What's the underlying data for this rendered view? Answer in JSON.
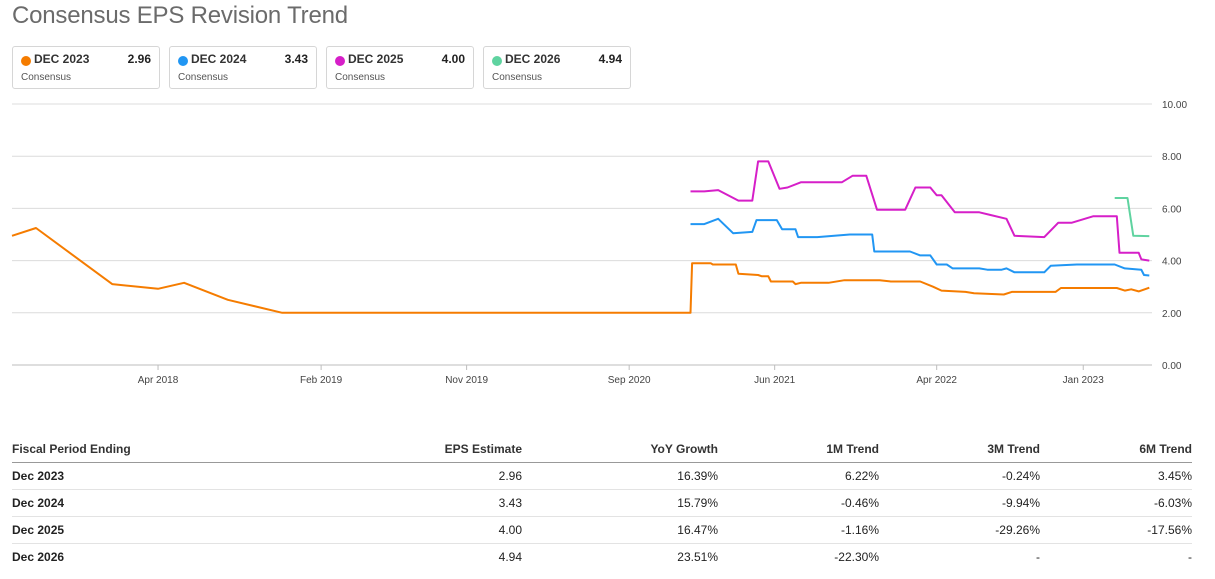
{
  "title": "Consensus EPS Revision Trend",
  "cards": [
    {
      "name": "DEC 2023",
      "value": "2.96",
      "sub": "Consensus",
      "color": "#f57c00"
    },
    {
      "name": "DEC 2024",
      "value": "3.43",
      "sub": "Consensus",
      "color": "#2196f3"
    },
    {
      "name": "DEC 2025",
      "value": "4.00",
      "sub": "Consensus",
      "color": "#d61fc8"
    },
    {
      "name": "DEC 2026",
      "value": "4.94",
      "sub": "Consensus",
      "color": "#5fd3a0"
    }
  ],
  "chart_data": {
    "type": "line",
    "title": "Consensus EPS Revision Trend",
    "xlabel": "",
    "ylabel": "",
    "x_range": [
      "2017-07-01",
      "2023-05-10"
    ],
    "ylim": [
      0,
      10
    ],
    "y_ticks": [
      "0.00",
      "2.00",
      "4.00",
      "6.00",
      "8.00",
      "10.00"
    ],
    "y_tick_values": [
      0,
      2,
      4,
      6,
      8,
      10
    ],
    "x_ticks": [
      {
        "label": "Apr 2018",
        "date": "2018-04-01"
      },
      {
        "label": "Feb 2019",
        "date": "2019-02-01"
      },
      {
        "label": "Nov 2019",
        "date": "2019-11-01"
      },
      {
        "label": "Sep 2020",
        "date": "2020-09-01"
      },
      {
        "label": "Jun 2021",
        "date": "2021-06-01"
      },
      {
        "label": "Apr 2022",
        "date": "2022-04-01"
      },
      {
        "label": "Jan 2023",
        "date": "2023-01-01"
      }
    ],
    "grid": true,
    "legend": "top",
    "series": [
      {
        "name": "DEC 2023",
        "color": "#f57c00",
        "points": [
          [
            "2017-07-01",
            4.95
          ],
          [
            "2017-08-15",
            5.25
          ],
          [
            "2018-01-05",
            3.1
          ],
          [
            "2018-04-01",
            2.92
          ],
          [
            "2018-05-20",
            3.15
          ],
          [
            "2018-08-10",
            2.5
          ],
          [
            "2018-11-20",
            2.0
          ],
          [
            "2020-12-25",
            2.0
          ],
          [
            "2020-12-28",
            3.9
          ],
          [
            "2021-02-01",
            3.9
          ],
          [
            "2021-02-05",
            3.85
          ],
          [
            "2021-03-20",
            3.85
          ],
          [
            "2021-03-25",
            3.5
          ],
          [
            "2021-05-01",
            3.45
          ],
          [
            "2021-05-08",
            3.4
          ],
          [
            "2021-05-20",
            3.4
          ],
          [
            "2021-05-25",
            3.2
          ],
          [
            "2021-07-05",
            3.2
          ],
          [
            "2021-07-10",
            3.1
          ],
          [
            "2021-07-20",
            3.15
          ],
          [
            "2021-09-10",
            3.15
          ],
          [
            "2021-10-10",
            3.25
          ],
          [
            "2021-12-15",
            3.25
          ],
          [
            "2022-01-05",
            3.2
          ],
          [
            "2022-03-01",
            3.2
          ],
          [
            "2022-03-25",
            3.0
          ],
          [
            "2022-04-10",
            2.85
          ],
          [
            "2022-05-25",
            2.8
          ],
          [
            "2022-06-10",
            2.75
          ],
          [
            "2022-08-05",
            2.7
          ],
          [
            "2022-08-20",
            2.8
          ],
          [
            "2022-11-10",
            2.8
          ],
          [
            "2022-11-20",
            2.95
          ],
          [
            "2023-03-05",
            2.95
          ],
          [
            "2023-03-20",
            2.85
          ],
          [
            "2023-04-01",
            2.9
          ],
          [
            "2023-04-15",
            2.82
          ],
          [
            "2023-05-05",
            2.96
          ]
        ]
      },
      {
        "name": "DEC 2024",
        "color": "#2196f3",
        "points": [
          [
            "2020-12-25",
            5.4
          ],
          [
            "2021-01-20",
            5.4
          ],
          [
            "2021-02-15",
            5.6
          ],
          [
            "2021-03-15",
            5.05
          ],
          [
            "2021-04-20",
            5.1
          ],
          [
            "2021-04-28",
            5.55
          ],
          [
            "2021-06-05",
            5.55
          ],
          [
            "2021-06-15",
            5.2
          ],
          [
            "2021-07-10",
            5.2
          ],
          [
            "2021-07-15",
            4.9
          ],
          [
            "2021-08-20",
            4.9
          ],
          [
            "2021-10-20",
            5.0
          ],
          [
            "2021-12-01",
            5.0
          ],
          [
            "2021-12-05",
            4.35
          ],
          [
            "2022-02-10",
            4.35
          ],
          [
            "2022-03-01",
            4.2
          ],
          [
            "2022-03-20",
            4.2
          ],
          [
            "2022-04-01",
            3.85
          ],
          [
            "2022-04-20",
            3.85
          ],
          [
            "2022-05-01",
            3.7
          ],
          [
            "2022-06-20",
            3.7
          ],
          [
            "2022-07-05",
            3.65
          ],
          [
            "2022-08-01",
            3.65
          ],
          [
            "2022-08-10",
            3.7
          ],
          [
            "2022-08-25",
            3.55
          ],
          [
            "2022-10-20",
            3.55
          ],
          [
            "2022-11-01",
            3.8
          ],
          [
            "2022-12-20",
            3.85
          ],
          [
            "2023-03-01",
            3.85
          ],
          [
            "2023-03-20",
            3.7
          ],
          [
            "2023-04-20",
            3.65
          ],
          [
            "2023-04-25",
            3.45
          ],
          [
            "2023-05-05",
            3.43
          ]
        ]
      },
      {
        "name": "DEC 2025",
        "color": "#d61fc8",
        "points": [
          [
            "2020-12-25",
            6.65
          ],
          [
            "2021-01-20",
            6.65
          ],
          [
            "2021-02-15",
            6.7
          ],
          [
            "2021-03-25",
            6.3
          ],
          [
            "2021-04-20",
            6.3
          ],
          [
            "2021-05-01",
            7.8
          ],
          [
            "2021-05-20",
            7.8
          ],
          [
            "2021-06-10",
            6.75
          ],
          [
            "2021-06-25",
            6.8
          ],
          [
            "2021-07-20",
            7.0
          ],
          [
            "2021-08-20",
            7.0
          ],
          [
            "2021-10-05",
            7.0
          ],
          [
            "2021-10-25",
            7.25
          ],
          [
            "2021-11-20",
            7.25
          ],
          [
            "2021-12-10",
            5.95
          ],
          [
            "2022-02-01",
            5.95
          ],
          [
            "2022-02-20",
            6.8
          ],
          [
            "2022-03-20",
            6.8
          ],
          [
            "2022-04-01",
            6.5
          ],
          [
            "2022-04-10",
            6.5
          ],
          [
            "2022-05-05",
            5.85
          ],
          [
            "2022-06-20",
            5.85
          ],
          [
            "2022-07-10",
            5.75
          ],
          [
            "2022-08-10",
            5.6
          ],
          [
            "2022-08-25",
            4.95
          ],
          [
            "2022-10-20",
            4.9
          ],
          [
            "2022-11-15",
            5.45
          ],
          [
            "2022-12-10",
            5.45
          ],
          [
            "2023-01-20",
            5.7
          ],
          [
            "2023-03-05",
            5.7
          ],
          [
            "2023-03-10",
            4.3
          ],
          [
            "2023-04-15",
            4.3
          ],
          [
            "2023-04-20",
            4.05
          ],
          [
            "2023-05-05",
            4.0
          ]
        ]
      },
      {
        "name": "DEC 2026",
        "color": "#5fd3a0",
        "points": [
          [
            "2023-03-01",
            6.4
          ],
          [
            "2023-03-25",
            6.4
          ],
          [
            "2023-04-05",
            4.95
          ],
          [
            "2023-05-05",
            4.94
          ]
        ]
      }
    ]
  },
  "table": {
    "headers": [
      "Fiscal Period Ending",
      "EPS Estimate",
      "YoY Growth",
      "1M Trend",
      "3M Trend",
      "6M Trend"
    ],
    "rows": [
      {
        "period": "Dec 2023",
        "eps": "2.96",
        "yoy": "16.39%",
        "m1": "6.22%",
        "m3": "-0.24%",
        "m6": "3.45%"
      },
      {
        "period": "Dec 2024",
        "eps": "3.43",
        "yoy": "15.79%",
        "m1": "-0.46%",
        "m3": "-9.94%",
        "m6": "-6.03%"
      },
      {
        "period": "Dec 2025",
        "eps": "4.00",
        "yoy": "16.47%",
        "m1": "-1.16%",
        "m3": "-29.26%",
        "m6": "-17.56%"
      },
      {
        "period": "Dec 2026",
        "eps": "4.94",
        "yoy": "23.51%",
        "m1": "-22.30%",
        "m3": "-",
        "m6": "-"
      }
    ]
  }
}
